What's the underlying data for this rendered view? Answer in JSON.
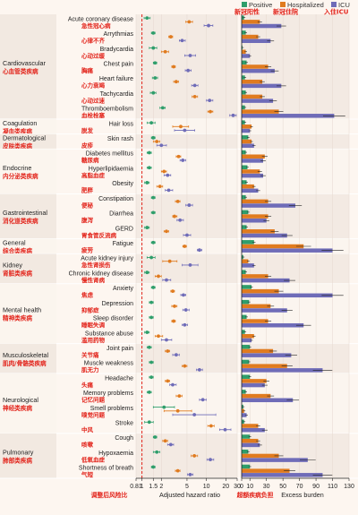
{
  "chart_data": {
    "type": "forest+bar",
    "legend": [
      {
        "name": "Positive",
        "name_zh": "新冠阳性",
        "color": "#2e9e6b"
      },
      {
        "name": "Hospitalized",
        "name_zh": "新冠住院",
        "color": "#e07b1f"
      },
      {
        "name": "ICU",
        "name_zh": "入住ICU",
        "color": "#6f6cb8"
      }
    ],
    "left_axis": {
      "label": "Adjusted hazard ratio",
      "label_zh": "调整后风险比",
      "scale": "log",
      "ticks": [
        "0.81",
        "1",
        "1.5",
        "2",
        "5",
        "10",
        "20",
        "30"
      ],
      "range": [
        0.81,
        30
      ],
      "reference_line": 1
    },
    "right_axis": {
      "label": "Excess burden",
      "label_zh": "超额疾病负担",
      "ticks": [
        "0",
        "10",
        "30",
        "50",
        "70",
        "90",
        "110",
        "130"
      ],
      "range": [
        0,
        130
      ]
    },
    "groups": [
      {
        "name": "Cardiovascular",
        "name_zh": "心血管类疾病",
        "rows": [
          {
            "label": "Acute coronary disease",
            "label_zh": "急性冠心病",
            "hr": [
              1.2,
              5.4,
              10.8
            ],
            "ci": [
              [
                1.08,
                1.34
              ],
              [
                4.8,
                6.1
              ],
              [
                9.2,
                12.6
              ]
            ],
            "burden": [
              3,
              22,
              48
            ]
          },
          {
            "label": "Arrythmias",
            "label_zh": "心律不齐",
            "hr": [
              1.5,
              2.8,
              4.2
            ],
            "ci": [
              [
                1.4,
                1.6
              ],
              [
                2.6,
                3.0
              ],
              [
                3.8,
                4.7
              ]
            ],
            "burden": [
              5,
              20,
              35
            ]
          },
          {
            "label": "Bradycardia",
            "label_zh": "心动过缓",
            "hr": [
              1.5,
              2.3,
              5.6
            ],
            "ci": [
              [
                1.3,
                1.7
              ],
              [
                2.0,
                2.6
              ],
              [
                4.6,
                6.8
              ]
            ],
            "burden": [
              1,
              5,
              10
            ]
          },
          {
            "label": "Chest pain",
            "label_zh": "胸痛",
            "hr": [
              1.6,
              3.1,
              5.2
            ],
            "ci": [
              [
                1.5,
                1.7
              ],
              [
                2.9,
                3.3
              ],
              [
                4.7,
                5.8
              ]
            ],
            "burden": [
              6,
              32,
              40
            ]
          },
          {
            "label": "Heart failure",
            "label_zh": "心力衰竭",
            "hr": [
              1.6,
              3.4,
              6.6
            ],
            "ci": [
              [
                1.45,
                1.75
              ],
              [
                3.1,
                3.7
              ],
              [
                5.9,
                7.4
              ]
            ],
            "burden": [
              4,
              25,
              48
            ]
          },
          {
            "label": "Tachycardia",
            "label_zh": "心动过速",
            "hr": [
              1.5,
              6.6,
              11.2
            ],
            "ci": [
              [
                1.35,
                1.65
              ],
              [
                6.0,
                7.3
              ],
              [
                10.0,
                12.6
              ]
            ],
            "burden": [
              5,
              25,
              38
            ]
          },
          {
            "label": "Thromboembolism",
            "label_zh": "血栓栓塞",
            "hr": [
              2.1,
              11.5,
              26
            ],
            "ci": [
              [
                1.9,
                2.3
              ],
              [
                10.5,
                12.6
              ],
              [
                23,
                29
              ]
            ],
            "burden": [
              4,
              45,
              112
            ]
          }
        ]
      },
      {
        "name": "Coagulation",
        "name_zh": "凝血类疾病",
        "rows": [
          {
            "label": "Hair loss",
            "label_zh": "脱发",
            "hr": [
              1.4,
              4.0,
              4.6
            ],
            "ci": [
              [
                1.2,
                1.6
              ],
              [
                3.0,
                5.3
              ],
              [
                3.2,
                6.6
              ]
            ],
            "burden": [
              4,
              12,
              10
            ]
          }
        ]
      },
      {
        "name": "Dermatological",
        "name_zh": "皮肤类疾病",
        "rows": [
          {
            "label": "Skin rash",
            "label_zh": "皮疹",
            "hr": [
              1.5,
              1.7,
              2.0
            ],
            "ci": [
              [
                1.4,
                1.6
              ],
              [
                1.5,
                1.9
              ],
              [
                1.7,
                2.4
              ]
            ],
            "burden": [
              8,
              12,
              15
            ]
          }
        ]
      },
      {
        "name": "Endocrine",
        "name_zh": "内分泌类疾病",
        "rows": [
          {
            "label": "Diabetes mellitus",
            "label_zh": "糖尿病",
            "hr": [
              1.3,
              3.7,
              4.3
            ],
            "ci": [
              [
                1.2,
                1.4
              ],
              [
                3.4,
                4.0
              ],
              [
                3.9,
                4.8
              ]
            ],
            "burden": [
              5,
              28,
              26
            ]
          },
          {
            "label": "Hyperlipidaemia",
            "label_zh": "高脂血症",
            "hr": [
              1.3,
              2.2,
              2.5
            ],
            "ci": [
              [
                1.2,
                1.4
              ],
              [
                2.0,
                2.4
              ],
              [
                2.2,
                2.8
              ]
            ],
            "burden": [
              7,
              22,
              26
            ]
          },
          {
            "label": "Obesity",
            "label_zh": "肥胖",
            "hr": [
              1.2,
              1.9,
              2.6
            ],
            "ci": [
              [
                1.1,
                1.3
              ],
              [
                1.7,
                2.1
              ],
              [
                2.3,
                3.0
              ]
            ],
            "burden": [
              6,
              15,
              20
            ]
          }
        ]
      },
      {
        "name": "Gastrointestinal",
        "name_zh": "消化道类疾病",
        "rows": [
          {
            "label": "Constipation",
            "label_zh": "便秘",
            "hr": [
              1.5,
              3.6,
              5.4
            ],
            "ci": [
              [
                1.4,
                1.6
              ],
              [
                3.3,
                3.9
              ],
              [
                4.8,
                6.1
              ]
            ],
            "burden": [
              5,
              32,
              65
            ]
          },
          {
            "label": "Diarrhea",
            "label_zh": "腹泻",
            "hr": [
              1.5,
              3.2,
              3.9
            ],
            "ci": [
              [
                1.4,
                1.6
              ],
              [
                3.0,
                3.5
              ],
              [
                3.5,
                4.4
              ]
            ],
            "burden": [
              8,
              32,
              30
            ]
          },
          {
            "label": "GERD",
            "label_zh": "胃食管反流病",
            "hr": [
              1.2,
              2.4,
              5.0
            ],
            "ci": [
              [
                1.1,
                1.3
              ],
              [
                2.2,
                2.6
              ],
              [
                4.4,
                5.7
              ]
            ],
            "burden": [
              6,
              40,
              55
            ]
          }
        ]
      },
      {
        "name": "General",
        "name_zh": "综合类疾病",
        "rows": [
          {
            "label": "Fatigue",
            "label_zh": "疲劳",
            "hr": [
              1.5,
              4.6,
              7.8
            ],
            "ci": [
              [
                1.4,
                1.6
              ],
              [
                4.3,
                4.9
              ],
              [
                7.2,
                8.5
              ]
            ],
            "burden": [
              15,
              75,
              110
            ]
          }
        ]
      },
      {
        "name": "Kidney",
        "name_zh": "肾脏类疾病",
        "rows": [
          {
            "label": "Acute kidney injury",
            "label_zh": "急性肾损伤",
            "hr": [
              1.4,
              2.7,
              5.6
            ],
            "ci": [
              [
                1.2,
                1.6
              ],
              [
                2.1,
                3.5
              ],
              [
                4.2,
                7.4
              ]
            ],
            "burden": [
              2,
              8,
              15
            ]
          },
          {
            "label": "Chronic kidney disease",
            "label_zh": "慢性肾病",
            "hr": [
              1.2,
              1.8,
              2.4
            ],
            "ci": [
              [
                1.1,
                1.3
              ],
              [
                1.6,
                2.0
              ],
              [
                2.1,
                2.8
              ]
            ],
            "burden": [
              5,
              32,
              58
            ]
          }
        ]
      },
      {
        "name": "Mental health",
        "name_zh": "精神类疾病",
        "rows": [
          {
            "label": "Anxiety",
            "label_zh": "焦虑",
            "hr": [
              1.5,
              3.0,
              4.4
            ],
            "ci": [
              [
                1.4,
                1.6
              ],
              [
                2.8,
                3.2
              ],
              [
                4.0,
                4.8
              ]
            ],
            "burden": [
              12,
              45,
              110
            ]
          },
          {
            "label": "Depression",
            "label_zh": "抑郁症",
            "hr": [
              1.4,
              3.2,
              4.8
            ],
            "ci": [
              [
                1.3,
                1.5
              ],
              [
                2.9,
                3.5
              ],
              [
                4.3,
                5.4
              ]
            ],
            "burden": [
              9,
              35,
              55
            ]
          },
          {
            "label": "Sleep disorder",
            "label_zh": "睡眠失调",
            "hr": [
              1.4,
              3.1,
              4.6
            ],
            "ci": [
              [
                1.3,
                1.5
              ],
              [
                2.9,
                3.3
              ],
              [
                4.2,
                5.1
              ]
            ],
            "burden": [
              6,
              32,
              75
            ]
          },
          {
            "label": "Substance abuse",
            "label_zh": "滥用药物",
            "hr": [
              1.2,
              1.8,
              2.4
            ],
            "ci": [
              [
                1.1,
                1.3
              ],
              [
                1.6,
                2.1
              ],
              [
                2.0,
                2.9
              ]
            ],
            "burden": [
              4,
              15,
              12
            ]
          }
        ]
      },
      {
        "name": "Musculoskeletal",
        "name_zh": "肌肉/骨骼类疾病",
        "rows": [
          {
            "label": "Joint pain",
            "label_zh": "关节痛",
            "hr": [
              1.3,
              2.5,
              3.4
            ],
            "ci": [
              [
                1.2,
                1.4
              ],
              [
                2.3,
                2.7
              ],
              [
                3.0,
                3.8
              ]
            ],
            "burden": [
              10,
              38,
              60
            ]
          },
          {
            "label": "Muscle weakness",
            "label_zh": "肌无力",
            "hr": [
              1.4,
              4.6,
              7.8
            ],
            "ci": [
              [
                1.3,
                1.5
              ],
              [
                4.2,
                5.0
              ],
              [
                7.0,
                8.7
              ]
            ],
            "burden": [
              9,
              55,
              98
            ]
          }
        ]
      },
      {
        "name": "Neurological",
        "name_zh": "神经类疾病",
        "rows": [
          {
            "label": "Headache",
            "label_zh": "头痛",
            "hr": [
              1.4,
              2.5,
              3.0
            ],
            "ci": [
              [
                1.3,
                1.5
              ],
              [
                2.3,
                2.7
              ],
              [
                2.7,
                3.4
              ]
            ],
            "burden": [
              10,
              30,
              28
            ]
          },
          {
            "label": "Memory problems",
            "label_zh": "记忆问题",
            "hr": [
              1.3,
              3.8,
              8.8
            ],
            "ci": [
              [
                1.2,
                1.4
              ],
              [
                3.4,
                4.2
              ],
              [
                7.8,
                9.9
              ]
            ],
            "burden": [
              5,
              35,
              62
            ]
          },
          {
            "label": "Smell problems",
            "label_zh": "嗅觉问题",
            "hr": [
              2.2,
              3.6,
              6.5
            ],
            "ci": [
              [
                1.5,
                3.2
              ],
              [
                2.2,
                5.9
              ],
              [
                3.0,
                14
              ]
            ],
            "burden": [
              2,
              3,
              6
            ]
          },
          {
            "label": "Stroke",
            "label_zh": "中风",
            "hr": [
              1.3,
              11.8,
              19.5
            ],
            "ci": [
              [
                1.1,
                1.5
              ],
              [
                10.5,
                13.2
              ],
              [
                16,
                24
              ]
            ],
            "burden": [
              3,
              20,
              28
            ]
          }
        ]
      },
      {
        "name": "Pulmonary",
        "name_zh": "肺部类疾病",
        "rows": [
          {
            "label": "Cough",
            "label_zh": "咳嗽",
            "hr": [
              1.6,
              2.3,
              2.8
            ],
            "ci": [
              [
                1.5,
                1.7
              ],
              [
                2.1,
                2.5
              ],
              [
                2.5,
                3.1
              ]
            ],
            "burden": [
              10,
              20,
              22
            ]
          },
          {
            "label": "Hypoxaemia",
            "label_zh": "低氧血症",
            "hr": [
              1.7,
              6.5,
              11.5
            ],
            "ci": [
              [
                1.5,
                1.9
              ],
              [
                5.8,
                7.3
              ],
              [
                10.2,
                13.0
              ]
            ],
            "burden": [
              8,
              45,
              80
            ]
          },
          {
            "label": "Shortness of breath",
            "label_zh": "气短",
            "hr": [
              1.5,
              3.6,
              5.6
            ],
            "ci": [
              [
                1.4,
                1.6
              ],
              [
                3.3,
                3.9
              ],
              [
                5.1,
                6.2
              ]
            ],
            "burden": [
              10,
              58,
              98
            ]
          }
        ]
      }
    ]
  }
}
